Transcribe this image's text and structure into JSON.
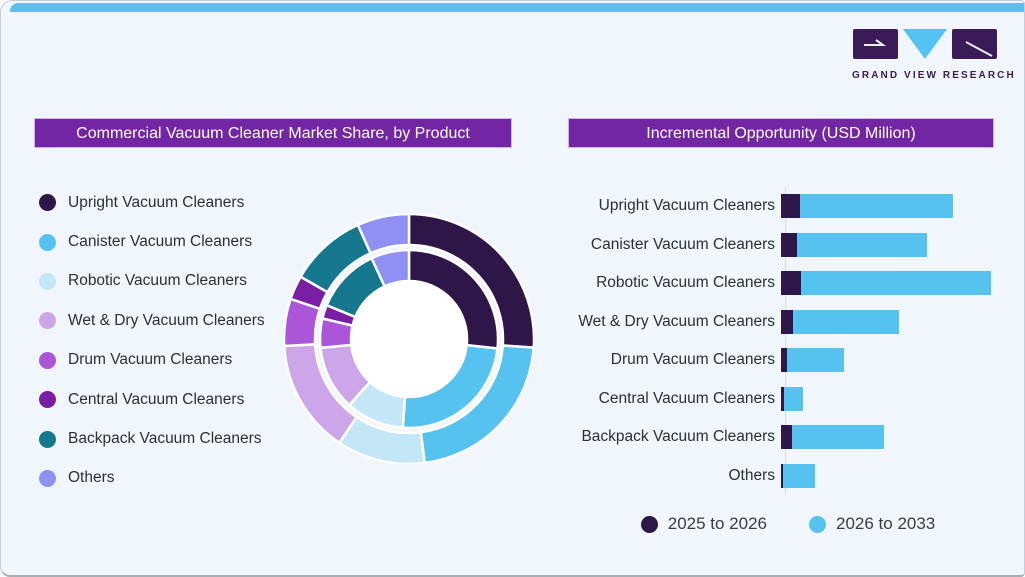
{
  "branding": {
    "logo_text": "GRAND VIEW RESEARCH"
  },
  "colors": {
    "card_background": "#f0f6fb",
    "top_accent": "#5ac1ee",
    "header_purple": "#7226a3",
    "logo_dark_purple": "#3a1b57",
    "logo_cyan": "#54c3f1",
    "text_dark": "#2e2e38",
    "axis_gray": "#d9dde2"
  },
  "donut": {
    "title": "Commercial Vacuum Cleaner Market Share, by Product",
    "legend": [
      {
        "label": "Upright Vacuum Cleaners",
        "color": "#2f1649"
      },
      {
        "label": "Canister Vacuum Cleaners",
        "color": "#56c2f0"
      },
      {
        "label": "Robotic Vacuum Cleaners",
        "color": "#c4e7f8"
      },
      {
        "label": "Wet & Dry Vacuum Cleaners",
        "color": "#cda6e9"
      },
      {
        "label": "Drum Vacuum Cleaners",
        "color": "#ab55d9"
      },
      {
        "label": "Central Vacuum Cleaners",
        "color": "#7a1fa5"
      },
      {
        "label": "Backpack Vacuum Cleaners",
        "color": "#15788f"
      },
      {
        "label": "Others",
        "color": "#8f90f2"
      }
    ]
  },
  "bars": {
    "title": "Incremental Opportunity (USD Million)",
    "legend": [
      {
        "label": "2025 to 2026",
        "color": "#2f1649"
      },
      {
        "label": "2026 to 2033",
        "color": "#56c2f0"
      }
    ]
  },
  "chart_data": [
    {
      "type": "pie",
      "variant": "double-ring-donut",
      "title": "Commercial Vacuum Cleaner Market Share, by Product",
      "categories": [
        "Upright Vacuum Cleaners",
        "Canister Vacuum Cleaners",
        "Robotic Vacuum Cleaners",
        "Wet & Dry Vacuum Cleaners",
        "Drum Vacuum Cleaners",
        "Central Vacuum Cleaners",
        "Backpack Vacuum Cleaners",
        "Others"
      ],
      "units": "percent share, estimated from arc angles (no numeric labels shown)",
      "series": [
        {
          "name": "inner-ring",
          "values": [
            26.7,
            24.4,
            10.6,
            11.7,
            5.3,
            2.5,
            11.9,
            6.9
          ]
        },
        {
          "name": "outer-ring",
          "values": [
            26.1,
            21.9,
            11.4,
            14.7,
            6.1,
            3.1,
            10.0,
            6.7
          ]
        }
      ],
      "colors": [
        "#2f1649",
        "#56c2f0",
        "#c4e7f8",
        "#cda6e9",
        "#ab55d9",
        "#7a1fa5",
        "#15788f",
        "#8f90f2"
      ],
      "legend_position": "left",
      "start_angle_deg": 0,
      "direction": "clockwise"
    },
    {
      "type": "bar",
      "orientation": "horizontal",
      "stacked": true,
      "title": "Incremental Opportunity (USD Million)",
      "categories": [
        "Upright Vacuum Cleaners",
        "Canister Vacuum Cleaners",
        "Robotic Vacuum Cleaners",
        "Wet & Dry Vacuum Cleaners",
        "Drum Vacuum Cleaners",
        "Central Vacuum Cleaners",
        "Backpack Vacuum Cleaners",
        "Others"
      ],
      "units": "estimated relative units (value axis not labeled in figure)",
      "series": [
        {
          "name": "2025 to 2026",
          "color": "#2f1649",
          "values": [
            19,
            16,
            20,
            12,
            6,
            3,
            11,
            2
          ]
        },
        {
          "name": "2026 to 2033",
          "color": "#56c2f0",
          "values": [
            153,
            130,
            190,
            106,
            57,
            19,
            92,
            32
          ]
        }
      ],
      "grid": false,
      "legend_position": "bottom"
    }
  ]
}
